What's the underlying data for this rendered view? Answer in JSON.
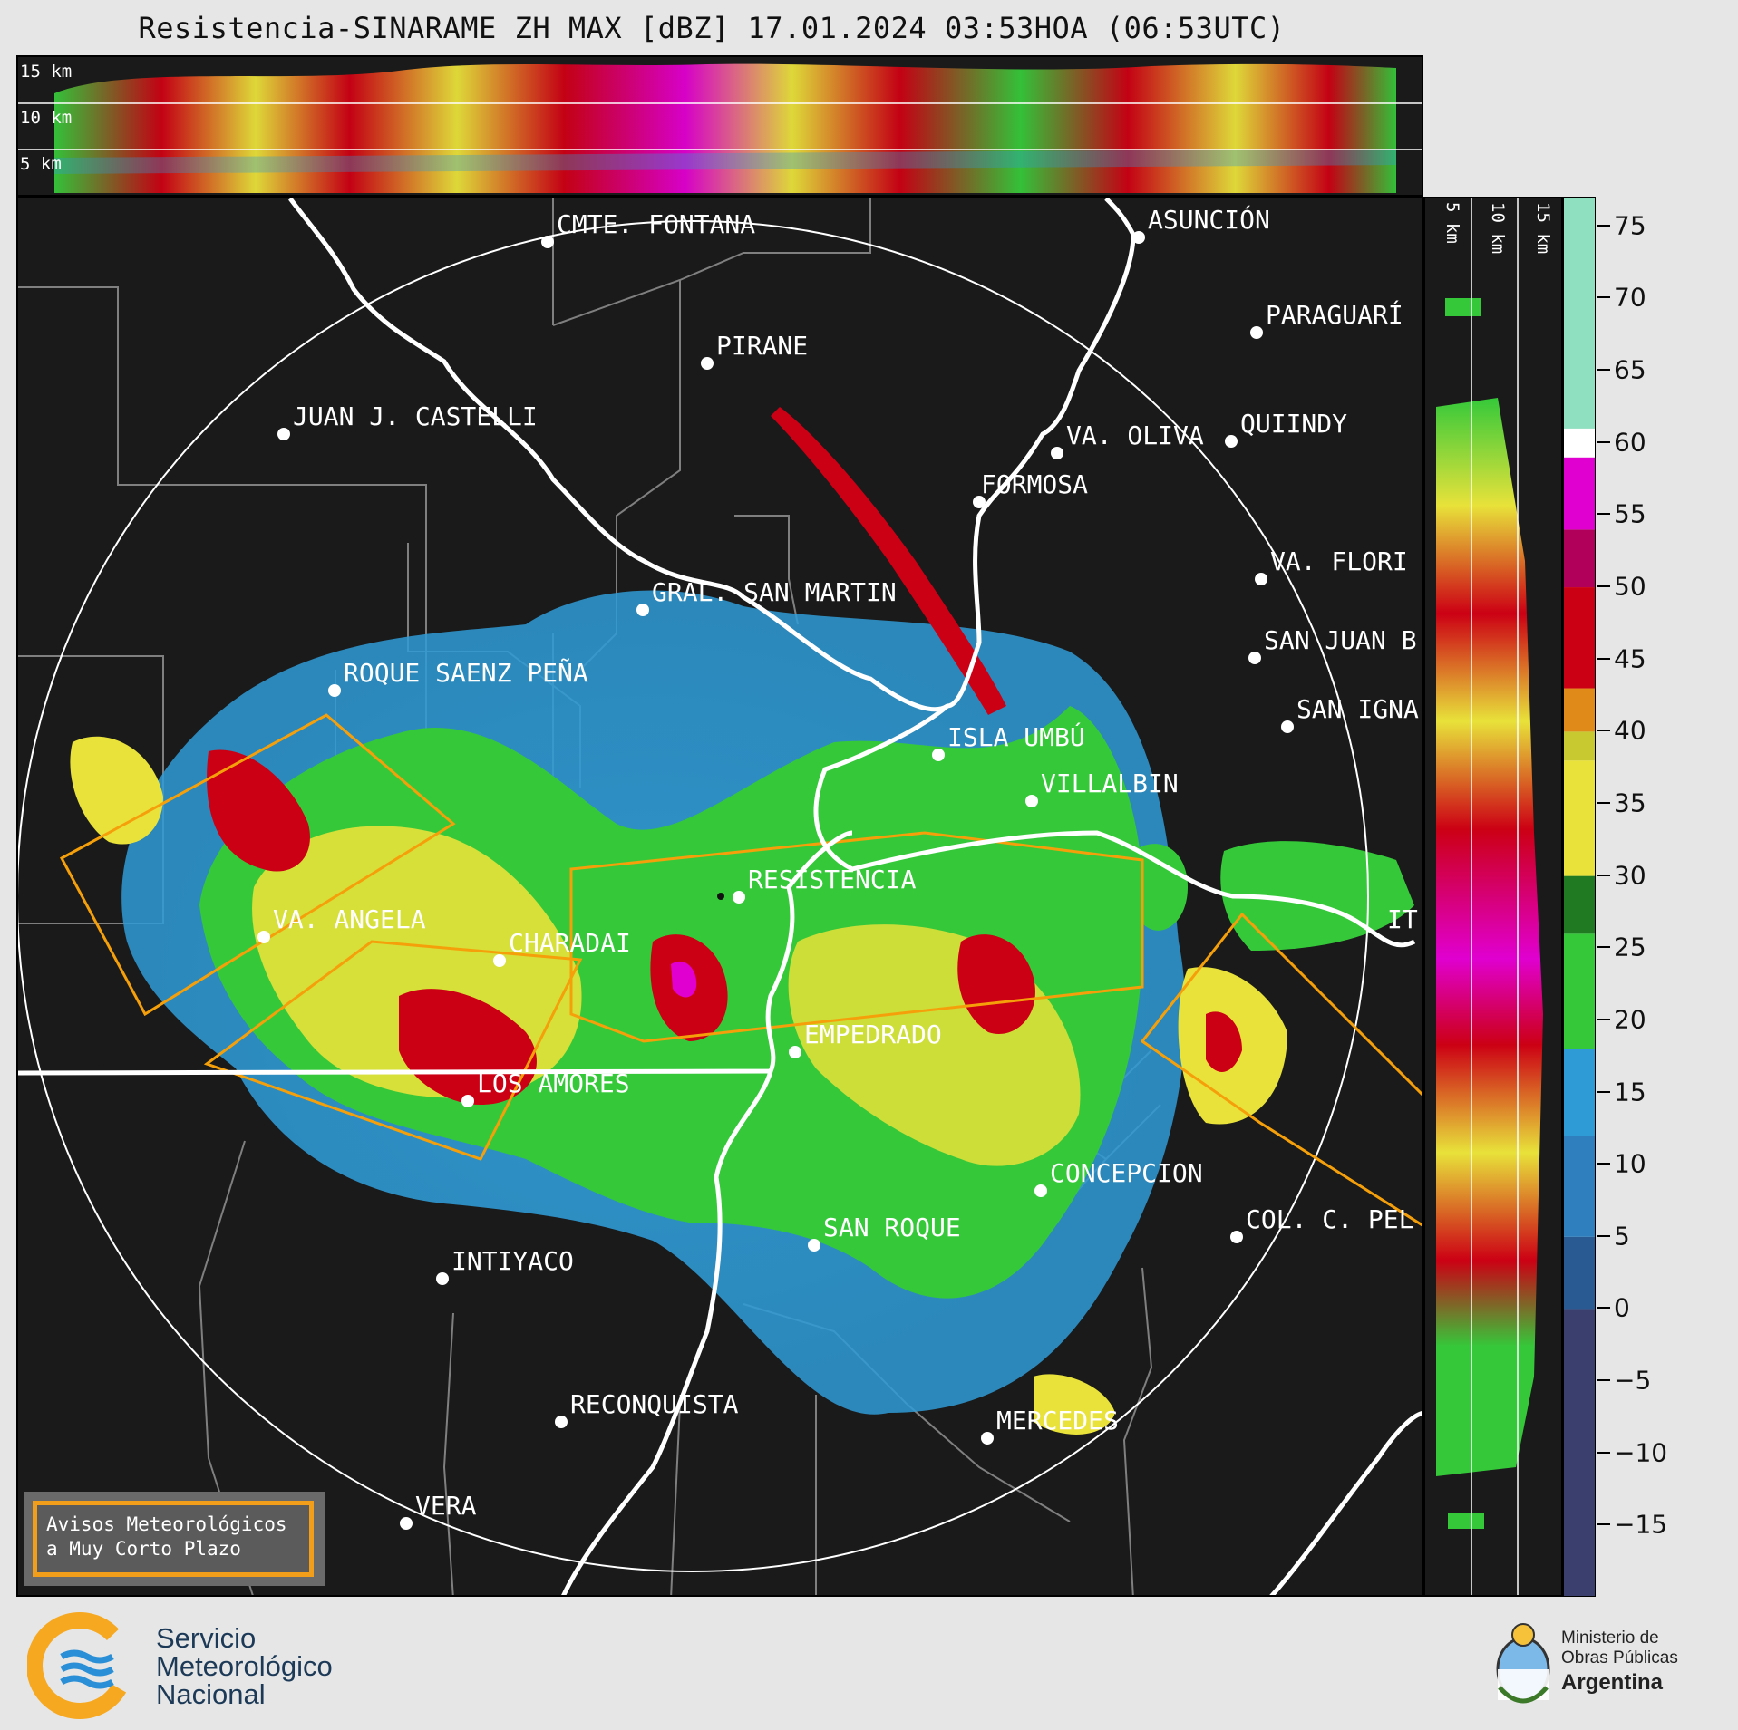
{
  "header": {
    "title": "Resistencia-SINARAME ZH MAX [dBZ] 17.01.2024 03:53HOA (06:53UTC)"
  },
  "top_panel": {
    "height_labels": [
      "15 km",
      "10 km",
      "5 km"
    ]
  },
  "side_panel": {
    "height_labels": [
      "5 km",
      "10 km",
      "15 km"
    ]
  },
  "cities": [
    {
      "name": "CMTE. FONTANA"
    },
    {
      "name": "ASUNCIÓN"
    },
    {
      "name": "PIRANE"
    },
    {
      "name": "PARAGUARÍ"
    },
    {
      "name": "JUAN J. CASTELLI"
    },
    {
      "name": "VA. OLIVA"
    },
    {
      "name": "QUIINDY"
    },
    {
      "name": "FORMOSA"
    },
    {
      "name": "VA. FLORI"
    },
    {
      "name": "GRAL. SAN MARTIN"
    },
    {
      "name": "SAN JUAN B"
    },
    {
      "name": "ROQUE SAENZ PEÑA"
    },
    {
      "name": "SAN IGNA"
    },
    {
      "name": "ISLA UMBÚ"
    },
    {
      "name": "VILLALBIN"
    },
    {
      "name": "RESISTENCIA"
    },
    {
      "name": "VA. ANGELA"
    },
    {
      "name": "CHARADAI"
    },
    {
      "name": "IT"
    },
    {
      "name": "EMPEDRADO"
    },
    {
      "name": "LOS AMORES"
    },
    {
      "name": "CONCEPCION"
    },
    {
      "name": "SAN ROQUE"
    },
    {
      "name": "COL. C. PEL"
    },
    {
      "name": "INTIYACO"
    },
    {
      "name": "RECONQUISTA"
    },
    {
      "name": "MERCEDES"
    },
    {
      "name": "VERA"
    }
  ],
  "colorbar": {
    "unit": "dBZ",
    "ticks": [
      "75",
      "70",
      "65",
      "60",
      "55",
      "50",
      "45",
      "40",
      "35",
      "30",
      "25",
      "20",
      "15",
      "10",
      "5",
      "0",
      "−5",
      "−10",
      "−15"
    ],
    "range": [
      -20,
      77
    ],
    "colors": {
      "low": "#3a3f6e",
      "blue": "#2f9bd6",
      "green": "#35c93a",
      "darkgreen": "#1f7a22",
      "yellow": "#e8e23a",
      "orange": "#e08a1a",
      "red": "#cc0014",
      "magenta": "#e000d0",
      "white": "#ffffff",
      "aqua": "#8ee0c0"
    }
  },
  "avisos_box": {
    "line1": "Avisos Meteorológicos",
    "line2": "a Muy Corto Plazo"
  },
  "footer": {
    "smn_line1": "Servicio",
    "smn_line2": "Meteorológico",
    "smn_line3": "Nacional",
    "ministry_line1": "Ministerio de",
    "ministry_line2": "Obras Públicas",
    "ministry_line3": "Argentina"
  },
  "style_colors": {
    "panel_bg": "#1a1a1a",
    "warning_outline": "#f5a00a",
    "border_white": "#ffffff",
    "admin_lines": "#8a8a8a"
  }
}
